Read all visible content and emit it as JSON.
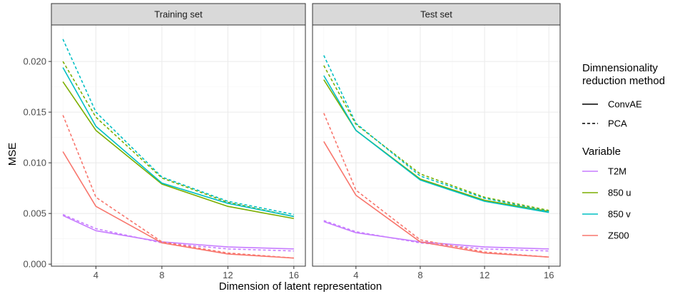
{
  "chart_data": {
    "type": "line",
    "facets": [
      "Training set",
      "Test set"
    ],
    "xlabel": "Dimension of latent representation",
    "ylabel": "MSE",
    "x": [
      2,
      4,
      8,
      12,
      16
    ],
    "xticks": [
      4,
      8,
      12,
      16
    ],
    "xlim": [
      1.3,
      16.7
    ],
    "yticks": [
      0.0,
      0.005,
      0.01,
      0.015,
      0.02
    ],
    "ytick_labels": [
      "0.000",
      "0.005",
      "0.010",
      "0.015",
      "0.020"
    ],
    "ylim": [
      -0.0002,
      0.0236
    ],
    "grid": true,
    "legend_position": "right",
    "legends": [
      {
        "title_lines": [
          "Dimnensionality",
          "reduction method"
        ],
        "items": [
          {
            "label": "ConvAE",
            "dash": "solid"
          },
          {
            "label": "PCA",
            "dash": "dashed"
          }
        ]
      },
      {
        "title_lines": [
          "Variable"
        ],
        "items": [
          {
            "label": "T2M",
            "color": "#C77CFF"
          },
          {
            "label": "850 u",
            "color": "#7CAE00"
          },
          {
            "label": "850 v",
            "color": "#00BFC4"
          },
          {
            "label": "Z500",
            "color": "#F8766D"
          }
        ]
      }
    ],
    "series": [
      {
        "facet": "Training set",
        "variable": "T2M",
        "method": "ConvAE",
        "color": "#C77CFF",
        "dash": "solid",
        "values": [
          0.0048,
          0.0033,
          0.0022,
          0.0017,
          0.0015
        ]
      },
      {
        "facet": "Training set",
        "variable": "T2M",
        "method": "PCA",
        "color": "#C77CFF",
        "dash": "dashed",
        "values": [
          0.0049,
          0.0035,
          0.0021,
          0.0015,
          0.0013
        ]
      },
      {
        "facet": "Training set",
        "variable": "850 u",
        "method": "ConvAE",
        "color": "#7CAE00",
        "dash": "solid",
        "values": [
          0.018,
          0.0132,
          0.0079,
          0.0057,
          0.0045
        ]
      },
      {
        "facet": "Training set",
        "variable": "850 u",
        "method": "PCA",
        "color": "#7CAE00",
        "dash": "dashed",
        "values": [
          0.02,
          0.0145,
          0.0085,
          0.0061,
          0.0047
        ]
      },
      {
        "facet": "Training set",
        "variable": "850 v",
        "method": "ConvAE",
        "color": "#00BFC4",
        "dash": "solid",
        "values": [
          0.0194,
          0.0136,
          0.008,
          0.006,
          0.0047
        ]
      },
      {
        "facet": "Training set",
        "variable": "850 v",
        "method": "PCA",
        "color": "#00BFC4",
        "dash": "dashed",
        "values": [
          0.0222,
          0.015,
          0.0086,
          0.0062,
          0.0049
        ]
      },
      {
        "facet": "Training set",
        "variable": "Z500",
        "method": "ConvAE",
        "color": "#F8766D",
        "dash": "solid",
        "values": [
          0.0111,
          0.0057,
          0.0021,
          0.001,
          0.0006
        ]
      },
      {
        "facet": "Training set",
        "variable": "Z500",
        "method": "PCA",
        "color": "#F8766D",
        "dash": "dashed",
        "values": [
          0.0147,
          0.0066,
          0.0022,
          0.0011,
          0.0006
        ]
      },
      {
        "facet": "Test set",
        "variable": "T2M",
        "method": "ConvAE",
        "color": "#C77CFF",
        "dash": "solid",
        "values": [
          0.0042,
          0.0031,
          0.0022,
          0.0017,
          0.0015
        ]
      },
      {
        "facet": "Test set",
        "variable": "T2M",
        "method": "PCA",
        "color": "#C77CFF",
        "dash": "dashed",
        "values": [
          0.0043,
          0.0032,
          0.0021,
          0.0015,
          0.0013
        ]
      },
      {
        "facet": "Test set",
        "variable": "850 u",
        "method": "ConvAE",
        "color": "#7CAE00",
        "dash": "solid",
        "values": [
          0.0182,
          0.0132,
          0.0084,
          0.0063,
          0.0052
        ]
      },
      {
        "facet": "Test set",
        "variable": "850 u",
        "method": "PCA",
        "color": "#7CAE00",
        "dash": "dashed",
        "values": [
          0.0196,
          0.0138,
          0.0089,
          0.0066,
          0.0053
        ]
      },
      {
        "facet": "Test set",
        "variable": "850 v",
        "method": "ConvAE",
        "color": "#00BFC4",
        "dash": "solid",
        "values": [
          0.0186,
          0.0132,
          0.0083,
          0.0062,
          0.0051
        ]
      },
      {
        "facet": "Test set",
        "variable": "850 v",
        "method": "PCA",
        "color": "#00BFC4",
        "dash": "dashed",
        "values": [
          0.0206,
          0.0139,
          0.0087,
          0.0065,
          0.0052
        ]
      },
      {
        "facet": "Test set",
        "variable": "Z500",
        "method": "ConvAE",
        "color": "#F8766D",
        "dash": "solid",
        "values": [
          0.0121,
          0.0068,
          0.0022,
          0.0011,
          0.0007
        ]
      },
      {
        "facet": "Test set",
        "variable": "Z500",
        "method": "PCA",
        "color": "#F8766D",
        "dash": "dashed",
        "values": [
          0.0149,
          0.0073,
          0.0024,
          0.0012,
          0.0007
        ]
      }
    ]
  }
}
